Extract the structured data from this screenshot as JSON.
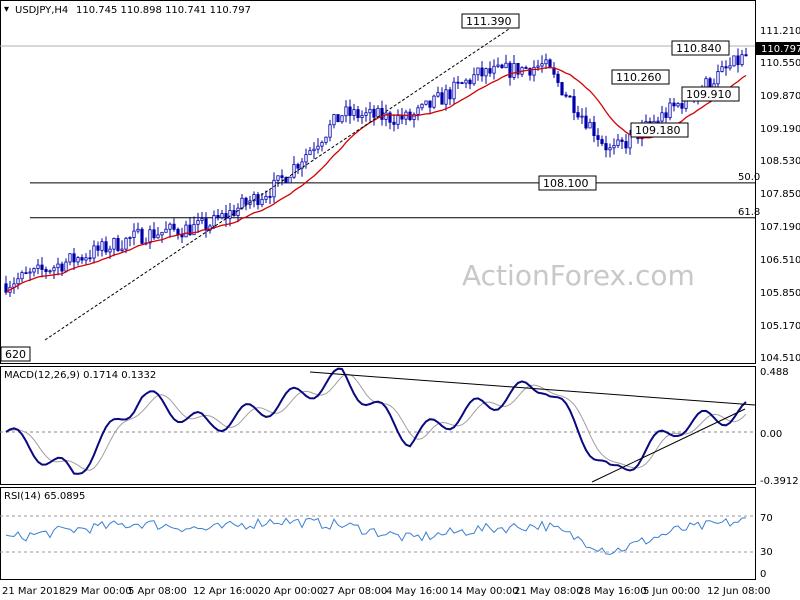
{
  "header": {
    "symbol": "USDJPY,H4",
    "ohlc": "110.745 110.898 110.741 110.797"
  },
  "watermark": "ActionForex.com",
  "price_axis": {
    "ticks": [
      "111.210",
      "110.550",
      "109.870",
      "109.190",
      "108.530",
      "107.850",
      "107.190",
      "106.510",
      "105.850",
      "105.170",
      "104.510"
    ],
    "current": "110.797"
  },
  "fib_levels": [
    {
      "label": "50.0",
      "value": 107.98
    },
    {
      "label": "61.8",
      "value": 107.26
    }
  ],
  "annotations": [
    {
      "label": "111.390",
      "value": 111.39
    },
    {
      "label": "110.840",
      "value": 110.84
    },
    {
      "label": "110.260",
      "value": 110.26
    },
    {
      "label": "109.910",
      "value": 109.91
    },
    {
      "label": "109.180",
      "value": 109.18
    },
    {
      "label": "108.100",
      "value": 108.1
    },
    {
      "label": "620",
      "value": 104.62
    }
  ],
  "macd": {
    "title": "MACD(12,26,9) 0.1714 0.1332",
    "ticks": [
      "0.488",
      "0.00",
      "-0.3912"
    ]
  },
  "rsi": {
    "title": "RSI(14) 65.0895",
    "ticks": [
      "70",
      "30",
      "0"
    ]
  },
  "time_axis": [
    "21 Mar 2018",
    "29 Mar 00:00",
    "5 Apr 08:00",
    "12 Apr 16:00",
    "20 Apr 00:00",
    "27 Apr 08:00",
    "4 May 16:00",
    "14 May 00:00",
    "21 May 08:00",
    "28 May 16:00",
    "5 Jun 00:00",
    "12 Jun 08:00"
  ],
  "colors": {
    "candle": "#0000aa",
    "ma": "#d40000",
    "macd": "#0a0a80",
    "signal": "#a0a0a0",
    "rsi": "#3b7fd1"
  },
  "chart_data": {
    "type": "line",
    "title": "USDJPY,H4",
    "x": [
      "21 Mar 2018",
      "29 Mar 00:00",
      "5 Apr 08:00",
      "12 Apr 16:00",
      "20 Apr 00:00",
      "27 Apr 08:00",
      "4 May 16:00",
      "14 May 00:00",
      "21 May 08:00",
      "28 May 16:00",
      "5 Jun 00:00",
      "12 Jun 08:00"
    ],
    "series": [
      {
        "name": "USDJPY,H4",
        "values": [
          105.9,
          106.4,
          106.9,
          107.1,
          107.9,
          109.4,
          109.3,
          110.2,
          110.4,
          108.6,
          109.6,
          110.6
        ]
      }
    ],
    "ylim": [
      104.4,
      111.5
    ],
    "macd": {
      "name": "MACD(12,26,9)",
      "values": [
        0.0,
        -0.35,
        0.3,
        0.05,
        0.22,
        0.45,
        -0.05,
        0.2,
        0.4,
        -0.36,
        0.05,
        0.17
      ]
    },
    "rsi": {
      "name": "RSI(14)",
      "values": [
        45,
        55,
        62,
        55,
        65,
        60,
        45,
        55,
        60,
        30,
        55,
        65
      ]
    }
  }
}
